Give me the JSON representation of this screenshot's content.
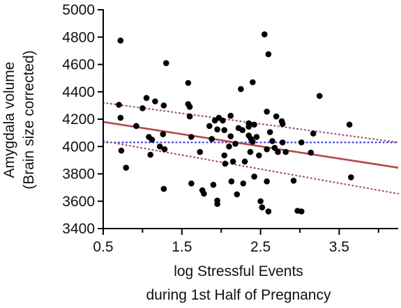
{
  "chart_data": {
    "type": "scatter",
    "title": "",
    "xlabel_lines": [
      "log Stressful Events",
      "during 1st Half of Pregnancy"
    ],
    "ylabel_lines": [
      "Amygdala volume",
      "(Brain size corrected)"
    ],
    "xlim": [
      0.5,
      4.25
    ],
    "ylim": [
      3400,
      5000
    ],
    "x_ticks": [
      0.5,
      1.5,
      2.5,
      3.5
    ],
    "x_tick_labels": [
      "0.5",
      "1.5",
      "2.5",
      "3.5"
    ],
    "x_minor_ticks": [
      1.0,
      2.0,
      3.0,
      4.0
    ],
    "y_ticks": [
      3400,
      3600,
      3800,
      4000,
      4200,
      4400,
      4600,
      4800,
      5000
    ],
    "y_tick_labels": [
      "3400",
      "3600",
      "3800",
      "4000",
      "4200",
      "4400",
      "4600",
      "4800",
      "5000"
    ],
    "grid": false,
    "colors": {
      "points": "#000000",
      "regression": "#b5474c",
      "confidence": "#a05070",
      "reference": "#3a3ad0",
      "axis": "#000000"
    },
    "regression_line": {
      "x": [
        0.5,
        4.25
      ],
      "y": [
        4180,
        3845
      ]
    },
    "confidence_band_upper": {
      "x": [
        0.5,
        4.25
      ],
      "y": [
        4320,
        4030
      ]
    },
    "confidence_band_lower": {
      "x": [
        0.5,
        4.25
      ],
      "y": [
        4040,
        3655
      ]
    },
    "reference_line": {
      "x": [
        0.5,
        4.25
      ],
      "y": [
        4030,
        4030
      ]
    },
    "points": [
      {
        "x": 0.72,
        "y": 4775
      },
      {
        "x": 0.7,
        "y": 4305
      },
      {
        "x": 0.72,
        "y": 4210
      },
      {
        "x": 0.73,
        "y": 3970
      },
      {
        "x": 0.79,
        "y": 3845
      },
      {
        "x": 0.92,
        "y": 4150
      },
      {
        "x": 1.0,
        "y": 4280
      },
      {
        "x": 1.05,
        "y": 4355
      },
      {
        "x": 1.08,
        "y": 4070
      },
      {
        "x": 1.12,
        "y": 4050
      },
      {
        "x": 1.1,
        "y": 3940
      },
      {
        "x": 1.16,
        "y": 4330
      },
      {
        "x": 1.22,
        "y": 4000
      },
      {
        "x": 1.26,
        "y": 4090
      },
      {
        "x": 1.27,
        "y": 3690
      },
      {
        "x": 1.28,
        "y": 3980
      },
      {
        "x": 1.27,
        "y": 4300
      },
      {
        "x": 1.3,
        "y": 4610
      },
      {
        "x": 1.58,
        "y": 4465
      },
      {
        "x": 1.58,
        "y": 4310
      },
      {
        "x": 1.6,
        "y": 4290
      },
      {
        "x": 1.6,
        "y": 4220
      },
      {
        "x": 1.62,
        "y": 4070
      },
      {
        "x": 1.62,
        "y": 3730
      },
      {
        "x": 1.73,
        "y": 3960
      },
      {
        "x": 1.76,
        "y": 3680
      },
      {
        "x": 1.78,
        "y": 3655
      },
      {
        "x": 1.85,
        "y": 4150
      },
      {
        "x": 1.88,
        "y": 4055
      },
      {
        "x": 1.9,
        "y": 3720
      },
      {
        "x": 1.92,
        "y": 4190
      },
      {
        "x": 1.95,
        "y": 4125
      },
      {
        "x": 1.95,
        "y": 3605
      },
      {
        "x": 1.95,
        "y": 3580
      },
      {
        "x": 1.97,
        "y": 4210
      },
      {
        "x": 2.02,
        "y": 4190
      },
      {
        "x": 2.04,
        "y": 4120
      },
      {
        "x": 2.04,
        "y": 3935
      },
      {
        "x": 2.05,
        "y": 3875
      },
      {
        "x": 2.1,
        "y": 4000
      },
      {
        "x": 2.12,
        "y": 4225
      },
      {
        "x": 2.12,
        "y": 4075
      },
      {
        "x": 2.13,
        "y": 3745
      },
      {
        "x": 2.15,
        "y": 3890
      },
      {
        "x": 2.18,
        "y": 4020
      },
      {
        "x": 2.2,
        "y": 3650
      },
      {
        "x": 2.22,
        "y": 4135
      },
      {
        "x": 2.25,
        "y": 4420
      },
      {
        "x": 2.27,
        "y": 4120
      },
      {
        "x": 2.28,
        "y": 3730
      },
      {
        "x": 2.3,
        "y": 3890
      },
      {
        "x": 2.35,
        "y": 4170
      },
      {
        "x": 2.35,
        "y": 4145
      },
      {
        "x": 2.35,
        "y": 4080
      },
      {
        "x": 2.37,
        "y": 3960
      },
      {
        "x": 2.38,
        "y": 4055
      },
      {
        "x": 2.4,
        "y": 4470
      },
      {
        "x": 2.4,
        "y": 4035
      },
      {
        "x": 2.42,
        "y": 4160
      },
      {
        "x": 2.42,
        "y": 3780
      },
      {
        "x": 2.45,
        "y": 4070
      },
      {
        "x": 2.48,
        "y": 3935
      },
      {
        "x": 2.5,
        "y": 3600
      },
      {
        "x": 2.52,
        "y": 3555
      },
      {
        "x": 2.55,
        "y": 4820
      },
      {
        "x": 2.58,
        "y": 4255
      },
      {
        "x": 2.6,
        "y": 4675
      },
      {
        "x": 2.58,
        "y": 3980
      },
      {
        "x": 2.58,
        "y": 3745
      },
      {
        "x": 2.6,
        "y": 3525
      },
      {
        "x": 2.62,
        "y": 4105
      },
      {
        "x": 2.65,
        "y": 4040
      },
      {
        "x": 2.68,
        "y": 3990
      },
      {
        "x": 2.7,
        "y": 4220
      },
      {
        "x": 2.72,
        "y": 3960
      },
      {
        "x": 2.77,
        "y": 4185
      },
      {
        "x": 2.78,
        "y": 4165
      },
      {
        "x": 2.78,
        "y": 4030
      },
      {
        "x": 2.82,
        "y": 3960
      },
      {
        "x": 2.92,
        "y": 3750
      },
      {
        "x": 2.97,
        "y": 3530
      },
      {
        "x": 3.02,
        "y": 3525
      },
      {
        "x": 3.02,
        "y": 4030
      },
      {
        "x": 3.14,
        "y": 3955
      },
      {
        "x": 3.17,
        "y": 4095
      },
      {
        "x": 3.25,
        "y": 4370
      },
      {
        "x": 3.63,
        "y": 4160
      },
      {
        "x": 3.65,
        "y": 3775
      }
    ]
  }
}
